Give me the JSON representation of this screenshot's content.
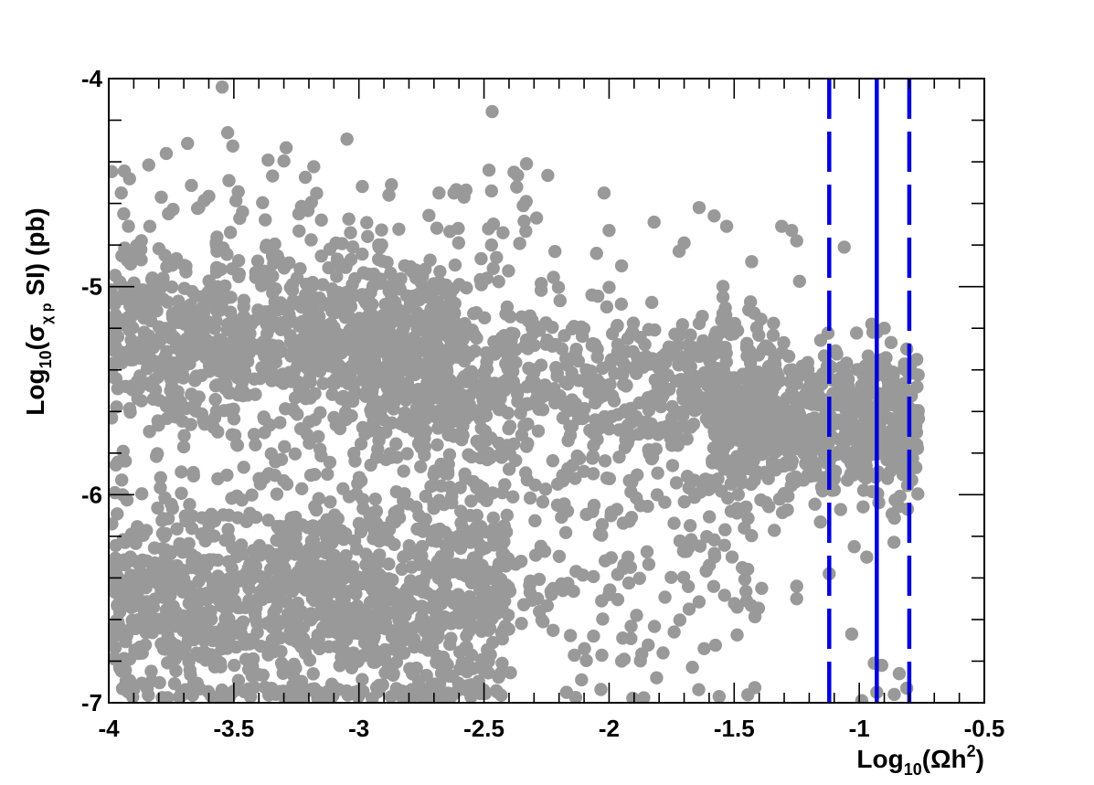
{
  "chart_data": {
    "type": "scatter",
    "title": "",
    "xlabel": {
      "base": "Log",
      "sub": "10",
      "rest": "(Ωh",
      "sup": "2",
      "end": ")"
    },
    "ylabel": {
      "base": "Log",
      "sub": "10",
      "open": "(σ",
      "sub2": "χ p",
      "rest": " SI) (pb)"
    },
    "xlim": [
      -4,
      -0.5
    ],
    "ylim": [
      -7,
      -4
    ],
    "x_ticks": [
      {
        "value": -4,
        "label": "-4"
      },
      {
        "value": -3.5,
        "label": "-3.5"
      },
      {
        "value": -3,
        "label": "-3"
      },
      {
        "value": -2.5,
        "label": "-2.5"
      },
      {
        "value": -2,
        "label": "-2"
      },
      {
        "value": -1.5,
        "label": "-1.5"
      },
      {
        "value": -1,
        "label": "-1"
      },
      {
        "value": -0.5,
        "label": "-0.5"
      }
    ],
    "y_ticks": [
      {
        "value": -4,
        "label": "-4"
      },
      {
        "value": -5,
        "label": "-5"
      },
      {
        "value": -6,
        "label": "-6"
      },
      {
        "value": -7,
        "label": "-7"
      }
    ],
    "point_color": "#999999",
    "vertical_lines": [
      {
        "x": -1.12,
        "style": "dashed",
        "color": "#0000dd"
      },
      {
        "x": -0.93,
        "style": "solid",
        "color": "#0000dd"
      },
      {
        "x": -0.8,
        "style": "dashed",
        "color": "#0000dd"
      }
    ],
    "regions": [
      {
        "x": [
          -4.0,
          -2.6
        ],
        "y_mean": -5.25,
        "y_spread": 0.22,
        "count": 900
      },
      {
        "x": [
          -3.0,
          -1.3
        ],
        "y_mean": -5.5,
        "y_spread": 0.2,
        "count": 700
      },
      {
        "x": [
          -1.6,
          -0.76
        ],
        "y_mean": -5.65,
        "y_spread": 0.18,
        "count": 700
      },
      {
        "x": [
          -4.0,
          -2.4
        ],
        "y_mean": -6.5,
        "y_spread": 0.3,
        "count": 1300
      },
      {
        "x": [
          -2.6,
          -1.4
        ],
        "y_mean": -6.3,
        "y_spread": 0.35,
        "count": 200
      },
      {
        "x": [
          -4.0,
          -2.2
        ],
        "y_mean": -4.9,
        "y_spread": 0.3,
        "count": 150
      }
    ],
    "points": [
      [
        -3.77,
        -4.36
      ],
      [
        -3.95,
        -4.55
      ],
      [
        -3.94,
        -4.65
      ],
      [
        -3.79,
        -4.57
      ],
      [
        -2.48,
        -4.44
      ],
      [
        -2.38,
        -4.45
      ],
      [
        -2.87,
        -4.51
      ],
      [
        -2.88,
        -4.56
      ],
      [
        -2.68,
        -4.55
      ],
      [
        -2.62,
        -4.55
      ],
      [
        -2.58,
        -4.57
      ],
      [
        -2.47,
        -4.54
      ],
      [
        -2.02,
        -4.55
      ],
      [
        -1.64,
        -4.62
      ],
      [
        -1.58,
        -4.66
      ],
      [
        -2.29,
        -4.67
      ],
      [
        -3.24,
        -4.65
      ],
      [
        -3.15,
        -4.68
      ],
      [
        -3.64,
        -4.62
      ],
      [
        -2.0,
        -4.73
      ],
      [
        -1.82,
        -4.69
      ],
      [
        -1.53,
        -4.71
      ],
      [
        -1.31,
        -4.71
      ],
      [
        -1.27,
        -4.73
      ],
      [
        -1.25,
        -4.78
      ],
      [
        -1.06,
        -4.81
      ],
      [
        -1.7,
        -4.79
      ],
      [
        -1.72,
        -4.83
      ],
      [
        -2.05,
        -4.84
      ],
      [
        -1.95,
        -4.9
      ],
      [
        -2.47,
        -4.8
      ],
      [
        -2.45,
        -4.86
      ],
      [
        -1.43,
        -4.88
      ],
      [
        -0.95,
        -5.18
      ],
      [
        -0.93,
        -5.22
      ],
      [
        -0.9,
        -5.2
      ],
      [
        -0.81,
        -5.3
      ],
      [
        -0.77,
        -5.35
      ],
      [
        -0.79,
        -5.93
      ],
      [
        -1.12,
        -6.38
      ],
      [
        -1.02,
        -6.25
      ],
      [
        -0.97,
        -6.3
      ],
      [
        -1.03,
        -6.67
      ],
      [
        -0.94,
        -6.81
      ],
      [
        -0.91,
        -6.82
      ],
      [
        -0.84,
        -6.86
      ],
      [
        -0.86,
        -6.96
      ],
      [
        -0.81,
        -6.93
      ],
      [
        -0.93,
        -6.95
      ],
      [
        -0.99,
        -6.99
      ],
      [
        -1.25,
        -6.5
      ],
      [
        -1.25,
        -6.44
      ],
      [
        -1.39,
        -6.45
      ],
      [
        -1.45,
        -6.51
      ],
      [
        -1.62,
        -6.74
      ],
      [
        -1.56,
        -6.97
      ],
      [
        -1.81,
        -6.88
      ],
      [
        -1.95,
        -6.8
      ],
      [
        -2.11,
        -6.89
      ],
      [
        -2.17,
        -6.95
      ],
      [
        -2.0,
        -6.48
      ],
      [
        -1.89,
        -6.58
      ],
      [
        -1.68,
        -6.55
      ],
      [
        -1.74,
        -6.66
      ]
    ]
  }
}
